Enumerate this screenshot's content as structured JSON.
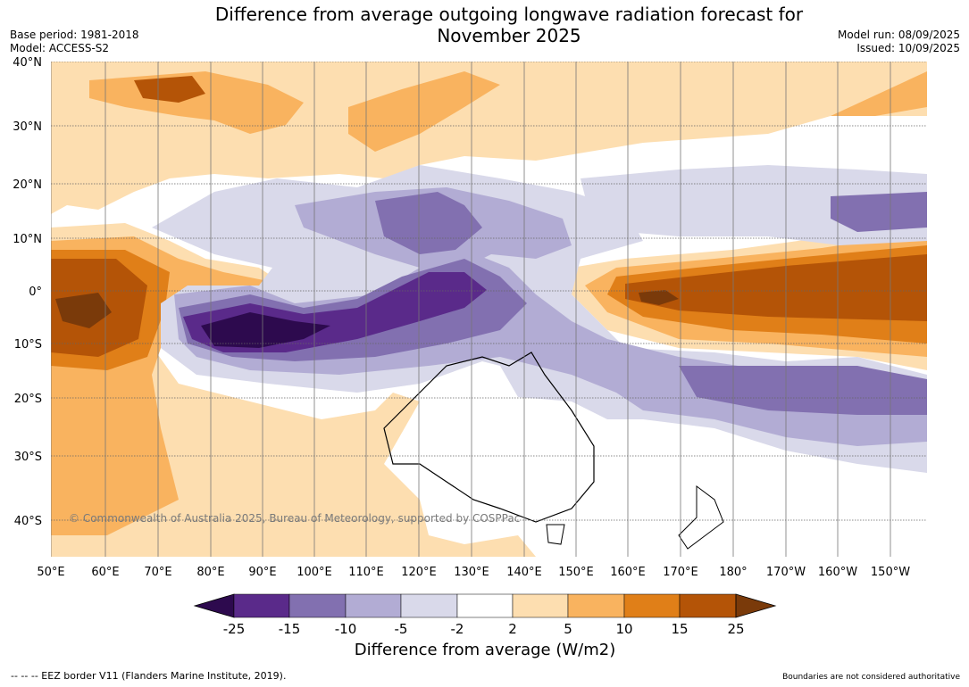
{
  "header": {
    "title_line1": "Difference from average outgoing longwave radiation forecast for",
    "title_line2": "November 2025",
    "base_period": "Base period: 1981-2018",
    "model": "Model: ACCESS-S2",
    "model_run": "Model run: 08/09/2025",
    "issued": "Issued: 10/09/2025"
  },
  "map": {
    "lon_labels": [
      "50°E",
      "60°E",
      "70°E",
      "80°E",
      "90°E",
      "100°E",
      "110°E",
      "120°E",
      "130°E",
      "140°E",
      "150°E",
      "160°E",
      "170°E",
      "180°",
      "170°W",
      "160°W",
      "150°W"
    ],
    "lat_labels": [
      "40°N",
      "30°N",
      "20°N",
      "10°N",
      "0°",
      "10°S",
      "20°S",
      "30°S",
      "40°S"
    ],
    "copyright": "© Commonwealth of Australia 2025, Bureau of Meteorology, supported by COSPPac"
  },
  "colorbar": {
    "ticks": [
      "-25",
      "-15",
      "-10",
      "-5",
      "-2",
      "2",
      "5",
      "10",
      "15",
      "25"
    ],
    "colors": [
      "#2d0a4e",
      "#5a2a8a",
      "#8270b0",
      "#b2acd4",
      "#d9d9ea",
      "#ffffff",
      "#fddeb0",
      "#f9b35f",
      "#e07f18",
      "#b45407",
      "#7a3a0a"
    ],
    "label": "Difference from average (W/m2)"
  },
  "footer": {
    "eez": "--  --  -- EEZ border V11 (Flanders Marine Institute, 2019).",
    "disclaimer": "Boundaries are not considered authoritative"
  }
}
